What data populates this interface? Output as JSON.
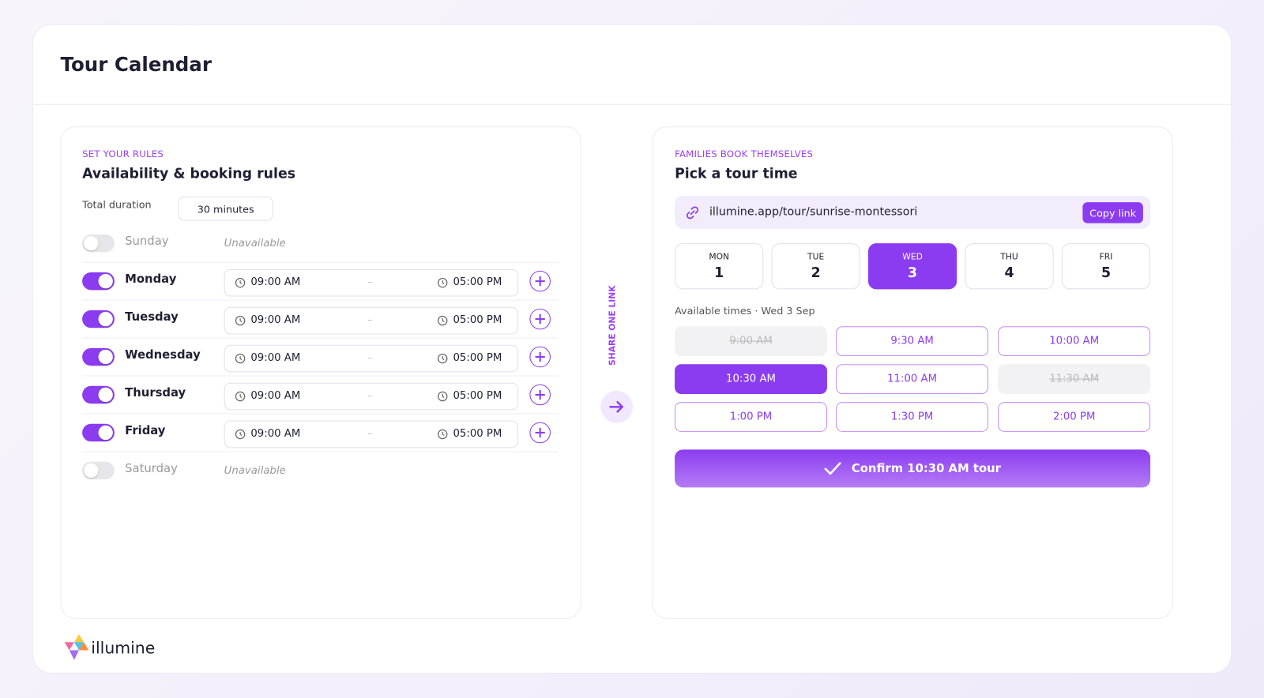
{
  "header": {
    "title": "Tour Calendar"
  },
  "rules": {
    "eyebrow": "SET YOUR RULES",
    "title": "Availability & booking rules",
    "duration_label": "Total duration",
    "duration": "30 minutes",
    "range_separator": "–",
    "days": [
      {
        "name": "Sunday",
        "enabled": false,
        "status": "Unavailable"
      },
      {
        "name": "Monday",
        "enabled": true,
        "start": "09:00 AM",
        "end": "05:00 PM"
      },
      {
        "name": "Tuesday",
        "enabled": true,
        "start": "09:00 AM",
        "end": "05:00 PM"
      },
      {
        "name": "Wednesday",
        "enabled": true,
        "start": "09:00 AM",
        "end": "05:00 PM"
      },
      {
        "name": "Thursday",
        "enabled": true,
        "start": "09:00 AM",
        "end": "05:00 PM"
      },
      {
        "name": "Friday",
        "enabled": true,
        "start": "09:00 AM",
        "end": "05:00 PM"
      },
      {
        "name": "Saturday",
        "enabled": false,
        "status": "Unavailable"
      }
    ]
  },
  "share": {
    "label": "SHARE ONE LINK"
  },
  "booking": {
    "eyebrow": "FAMILIES BOOK THEMSELVES",
    "title": "Pick a tour time",
    "link": "illumine.app/tour/sunrise-montessori",
    "copy": "Copy link",
    "dates": [
      {
        "day": "MON",
        "date": "1",
        "selected": false
      },
      {
        "day": "TUE",
        "date": "2",
        "selected": false
      },
      {
        "day": "WED",
        "date": "3",
        "selected": true
      },
      {
        "day": "THU",
        "date": "4",
        "selected": false
      },
      {
        "day": "FRI",
        "date": "5",
        "selected": false
      }
    ],
    "times_label": "Available times · Wed 3 Sep",
    "times": [
      {
        "label": "9:00 AM",
        "state": "unavailable"
      },
      {
        "label": "9:30 AM",
        "state": "open"
      },
      {
        "label": "10:00 AM",
        "state": "open"
      },
      {
        "label": "10:30 AM",
        "state": "selected"
      },
      {
        "label": "11:00 AM",
        "state": "open"
      },
      {
        "label": "11:30 AM",
        "state": "unavailable"
      },
      {
        "label": "1:00 PM",
        "state": "open"
      },
      {
        "label": "1:30 PM",
        "state": "open"
      },
      {
        "label": "2:00 PM",
        "state": "open"
      }
    ],
    "confirm": "Confirm 10:30 AM tour"
  },
  "footer": {
    "brand": "illumine"
  }
}
